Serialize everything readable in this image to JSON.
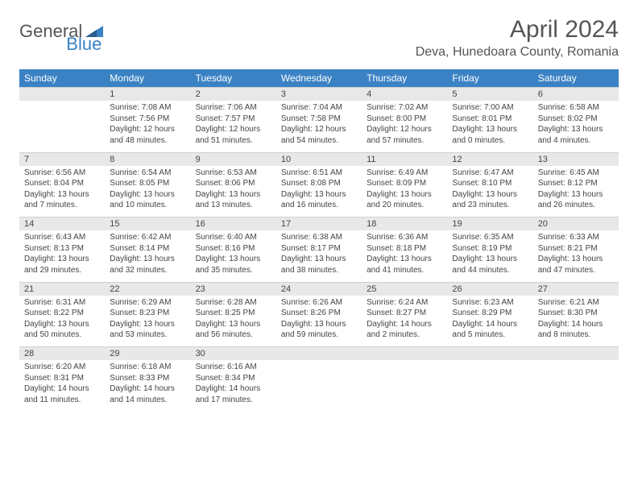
{
  "logo": {
    "part1": "General",
    "part2": "Blue"
  },
  "title": "April 2024",
  "location": "Deva, Hunedoara County, Romania",
  "colors": {
    "header_bg": "#3b82c4",
    "header_fg": "#ffffff",
    "daynum_bg": "#e8e8e8",
    "text": "#444444",
    "logo_gray": "#555555",
    "logo_blue": "#3b82c4"
  },
  "weekdays": [
    "Sunday",
    "Monday",
    "Tuesday",
    "Wednesday",
    "Thursday",
    "Friday",
    "Saturday"
  ],
  "weeks": [
    [
      null,
      {
        "n": "1",
        "sr": "7:08 AM",
        "ss": "7:56 PM",
        "dl": "12 hours and 48 minutes."
      },
      {
        "n": "2",
        "sr": "7:06 AM",
        "ss": "7:57 PM",
        "dl": "12 hours and 51 minutes."
      },
      {
        "n": "3",
        "sr": "7:04 AM",
        "ss": "7:58 PM",
        "dl": "12 hours and 54 minutes."
      },
      {
        "n": "4",
        "sr": "7:02 AM",
        "ss": "8:00 PM",
        "dl": "12 hours and 57 minutes."
      },
      {
        "n": "5",
        "sr": "7:00 AM",
        "ss": "8:01 PM",
        "dl": "13 hours and 0 minutes."
      },
      {
        "n": "6",
        "sr": "6:58 AM",
        "ss": "8:02 PM",
        "dl": "13 hours and 4 minutes."
      }
    ],
    [
      {
        "n": "7",
        "sr": "6:56 AM",
        "ss": "8:04 PM",
        "dl": "13 hours and 7 minutes."
      },
      {
        "n": "8",
        "sr": "6:54 AM",
        "ss": "8:05 PM",
        "dl": "13 hours and 10 minutes."
      },
      {
        "n": "9",
        "sr": "6:53 AM",
        "ss": "8:06 PM",
        "dl": "13 hours and 13 minutes."
      },
      {
        "n": "10",
        "sr": "6:51 AM",
        "ss": "8:08 PM",
        "dl": "13 hours and 16 minutes."
      },
      {
        "n": "11",
        "sr": "6:49 AM",
        "ss": "8:09 PM",
        "dl": "13 hours and 20 minutes."
      },
      {
        "n": "12",
        "sr": "6:47 AM",
        "ss": "8:10 PM",
        "dl": "13 hours and 23 minutes."
      },
      {
        "n": "13",
        "sr": "6:45 AM",
        "ss": "8:12 PM",
        "dl": "13 hours and 26 minutes."
      }
    ],
    [
      {
        "n": "14",
        "sr": "6:43 AM",
        "ss": "8:13 PM",
        "dl": "13 hours and 29 minutes."
      },
      {
        "n": "15",
        "sr": "6:42 AM",
        "ss": "8:14 PM",
        "dl": "13 hours and 32 minutes."
      },
      {
        "n": "16",
        "sr": "6:40 AM",
        "ss": "8:16 PM",
        "dl": "13 hours and 35 minutes."
      },
      {
        "n": "17",
        "sr": "6:38 AM",
        "ss": "8:17 PM",
        "dl": "13 hours and 38 minutes."
      },
      {
        "n": "18",
        "sr": "6:36 AM",
        "ss": "8:18 PM",
        "dl": "13 hours and 41 minutes."
      },
      {
        "n": "19",
        "sr": "6:35 AM",
        "ss": "8:19 PM",
        "dl": "13 hours and 44 minutes."
      },
      {
        "n": "20",
        "sr": "6:33 AM",
        "ss": "8:21 PM",
        "dl": "13 hours and 47 minutes."
      }
    ],
    [
      {
        "n": "21",
        "sr": "6:31 AM",
        "ss": "8:22 PM",
        "dl": "13 hours and 50 minutes."
      },
      {
        "n": "22",
        "sr": "6:29 AM",
        "ss": "8:23 PM",
        "dl": "13 hours and 53 minutes."
      },
      {
        "n": "23",
        "sr": "6:28 AM",
        "ss": "8:25 PM",
        "dl": "13 hours and 56 minutes."
      },
      {
        "n": "24",
        "sr": "6:26 AM",
        "ss": "8:26 PM",
        "dl": "13 hours and 59 minutes."
      },
      {
        "n": "25",
        "sr": "6:24 AM",
        "ss": "8:27 PM",
        "dl": "14 hours and 2 minutes."
      },
      {
        "n": "26",
        "sr": "6:23 AM",
        "ss": "8:29 PM",
        "dl": "14 hours and 5 minutes."
      },
      {
        "n": "27",
        "sr": "6:21 AM",
        "ss": "8:30 PM",
        "dl": "14 hours and 8 minutes."
      }
    ],
    [
      {
        "n": "28",
        "sr": "6:20 AM",
        "ss": "8:31 PM",
        "dl": "14 hours and 11 minutes."
      },
      {
        "n": "29",
        "sr": "6:18 AM",
        "ss": "8:33 PM",
        "dl": "14 hours and 14 minutes."
      },
      {
        "n": "30",
        "sr": "6:16 AM",
        "ss": "8:34 PM",
        "dl": "14 hours and 17 minutes."
      },
      null,
      null,
      null,
      null
    ]
  ],
  "labels": {
    "sunrise": "Sunrise:",
    "sunset": "Sunset:",
    "daylight": "Daylight:"
  }
}
